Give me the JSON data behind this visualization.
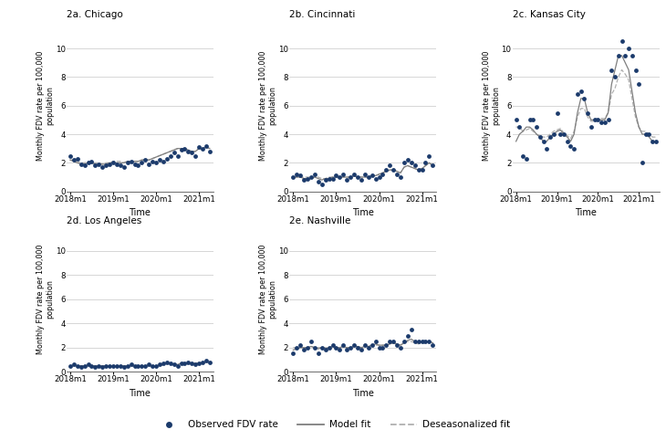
{
  "cities": [
    "2a. Chicago",
    "2b. Cincinnati",
    "2c. Kansas City",
    "2d. Los Angeles",
    "2e. Nashville"
  ],
  "dot_color": "#1b3a6b",
  "model_color": "#7f7f7f",
  "deseasonal_color": "#b0b0b0",
  "ylabel": "Monthly FDV rate per 100,000\npopulation",
  "xlabel": "Time",
  "xtick_labels": [
    "2018m1",
    "2019m1",
    "2020m1",
    "2021m1"
  ],
  "ylim": [
    0,
    12
  ],
  "yticks": [
    0,
    2,
    4,
    6,
    8,
    10
  ],
  "background_color": "#ffffff",
  "legend_dot_label": "Observed FDV rate",
  "legend_solid_label": "Model fit",
  "legend_dash_label": "Deseasonalized fit",
  "chicago_obs": [
    2.5,
    2.2,
    2.3,
    1.9,
    1.8,
    2.0,
    2.1,
    1.8,
    1.9,
    1.7,
    1.8,
    1.9,
    2.0,
    1.9,
    1.8,
    1.7,
    2.0,
    2.1,
    1.9,
    1.8,
    2.0,
    2.2,
    1.9,
    2.1,
    2.0,
    2.2,
    2.1,
    2.3,
    2.5,
    2.7,
    2.5,
    2.9,
    3.0,
    2.8,
    2.7,
    2.5,
    3.1,
    3.0,
    3.2,
    2.8
  ],
  "chicago_model": [
    2.2,
    2.1,
    2.0,
    1.9,
    1.9,
    2.0,
    2.0,
    1.9,
    1.9,
    1.9,
    1.9,
    2.0,
    2.0,
    2.0,
    2.0,
    2.0,
    2.1,
    2.1,
    2.1,
    2.1,
    2.2,
    2.2,
    2.2,
    2.3,
    2.4,
    2.5,
    2.6,
    2.7,
    2.8,
    2.9,
    3.0,
    3.0,
    3.0,
    2.9,
    2.8,
    2.8,
    3.0,
    3.0,
    3.1,
    3.0
  ],
  "chicago_deseas": [
    2.2,
    2.2,
    2.1,
    2.0,
    2.0,
    2.1,
    2.0,
    2.0,
    2.0,
    1.9,
    2.0,
    2.0,
    2.1,
    2.1,
    2.1,
    2.0,
    2.1,
    2.1,
    2.1,
    2.1,
    2.2,
    2.2,
    2.2,
    2.3,
    2.4,
    2.5,
    2.6,
    2.7,
    2.8,
    2.9,
    3.0,
    2.9,
    2.9,
    2.8,
    2.8,
    2.8,
    3.0,
    3.0,
    3.1,
    3.0
  ],
  "cincinnati_obs": [
    1.0,
    1.2,
    1.1,
    0.8,
    0.9,
    1.0,
    1.2,
    0.7,
    0.5,
    0.8,
    0.9,
    0.9,
    1.1,
    1.0,
    1.2,
    0.8,
    1.0,
    1.2,
    1.0,
    0.8,
    1.2,
    1.0,
    1.1,
    0.9,
    1.0,
    1.2,
    1.5,
    1.8,
    1.5,
    1.2,
    1.0,
    2.0,
    2.2,
    2.0,
    1.8,
    1.5,
    1.5,
    2.0,
    2.5,
    1.8
  ],
  "cincinnati_model": [
    1.0,
    1.0,
    1.0,
    0.9,
    0.9,
    0.9,
    1.0,
    0.9,
    0.8,
    0.9,
    0.9,
    1.0,
    1.0,
    1.0,
    1.0,
    1.0,
    1.0,
    1.1,
    1.0,
    1.0,
    1.0,
    1.0,
    1.1,
    1.1,
    1.2,
    1.3,
    1.4,
    1.5,
    1.5,
    1.4,
    1.3,
    1.7,
    1.8,
    1.7,
    1.6,
    1.5,
    1.6,
    1.8,
    2.0,
    1.8
  ],
  "cincinnati_deseas": [
    1.0,
    1.0,
    1.0,
    1.0,
    1.0,
    1.0,
    1.0,
    1.0,
    0.9,
    0.9,
    1.0,
    1.0,
    1.0,
    1.0,
    1.0,
    1.0,
    1.0,
    1.1,
    1.0,
    1.0,
    1.0,
    1.0,
    1.1,
    1.1,
    1.2,
    1.3,
    1.4,
    1.5,
    1.5,
    1.4,
    1.3,
    1.7,
    1.8,
    1.7,
    1.6,
    1.5,
    1.6,
    1.8,
    2.0,
    1.8
  ],
  "kc_obs": [
    5.0,
    4.5,
    2.5,
    2.3,
    5.0,
    5.0,
    4.5,
    3.8,
    3.5,
    3.0,
    3.8,
    4.0,
    5.5,
    4.0,
    4.0,
    3.5,
    3.2,
    3.0,
    6.8,
    7.0,
    6.5,
    5.5,
    4.5,
    5.0,
    5.0,
    4.8,
    4.8,
    5.0,
    8.5,
    8.0,
    9.5,
    10.5,
    9.5,
    10.0,
    9.5,
    8.5,
    7.5,
    2.0,
    4.0,
    4.0,
    3.5,
    3.5
  ],
  "kc_model": [
    3.5,
    4.0,
    4.2,
    4.5,
    4.5,
    4.3,
    4.0,
    3.8,
    3.5,
    3.5,
    3.8,
    4.0,
    4.2,
    4.3,
    4.0,
    3.8,
    3.5,
    4.0,
    5.5,
    6.5,
    6.5,
    5.5,
    5.0,
    5.0,
    5.0,
    5.0,
    5.0,
    5.5,
    7.5,
    8.5,
    9.5,
    9.5,
    9.0,
    8.5,
    7.0,
    5.5,
    4.5,
    4.0,
    4.0,
    3.8,
    3.5,
    3.5
  ],
  "kc_deseas": [
    4.5,
    4.5,
    4.2,
    4.3,
    4.4,
    4.2,
    4.0,
    3.9,
    3.8,
    3.8,
    4.0,
    4.2,
    4.3,
    4.4,
    4.1,
    3.9,
    3.7,
    4.2,
    5.2,
    5.8,
    5.8,
    5.2,
    4.9,
    4.9,
    5.0,
    5.1,
    5.1,
    5.5,
    6.8,
    7.2,
    8.0,
    8.5,
    8.2,
    7.8,
    6.5,
    5.2,
    4.5,
    4.2,
    4.2,
    4.0,
    3.8,
    3.8
  ],
  "la_obs": [
    0.5,
    0.6,
    0.5,
    0.4,
    0.5,
    0.6,
    0.5,
    0.4,
    0.5,
    0.4,
    0.5,
    0.5,
    0.5,
    0.5,
    0.5,
    0.4,
    0.5,
    0.6,
    0.5,
    0.5,
    0.5,
    0.5,
    0.6,
    0.5,
    0.5,
    0.6,
    0.7,
    0.8,
    0.7,
    0.6,
    0.5,
    0.7,
    0.7,
    0.8,
    0.7,
    0.6,
    0.7,
    0.8,
    0.9,
    0.8
  ],
  "la_model": [
    0.5,
    0.5,
    0.5,
    0.5,
    0.5,
    0.5,
    0.5,
    0.5,
    0.5,
    0.5,
    0.5,
    0.5,
    0.5,
    0.5,
    0.5,
    0.5,
    0.5,
    0.5,
    0.5,
    0.5,
    0.5,
    0.5,
    0.5,
    0.5,
    0.5,
    0.5,
    0.6,
    0.7,
    0.7,
    0.6,
    0.6,
    0.7,
    0.7,
    0.7,
    0.7,
    0.7,
    0.7,
    0.8,
    0.8,
    0.8
  ],
  "la_deseas": [
    0.5,
    0.5,
    0.5,
    0.5,
    0.5,
    0.5,
    0.5,
    0.5,
    0.5,
    0.5,
    0.5,
    0.5,
    0.5,
    0.5,
    0.5,
    0.5,
    0.5,
    0.5,
    0.5,
    0.5,
    0.5,
    0.5,
    0.5,
    0.5,
    0.5,
    0.5,
    0.6,
    0.7,
    0.7,
    0.6,
    0.6,
    0.7,
    0.7,
    0.7,
    0.7,
    0.7,
    0.7,
    0.8,
    0.8,
    0.8
  ],
  "nash_obs": [
    1.5,
    2.0,
    2.2,
    1.8,
    2.0,
    2.5,
    2.0,
    1.5,
    2.0,
    1.8,
    2.0,
    2.2,
    2.0,
    1.8,
    2.2,
    1.8,
    2.0,
    2.2,
    2.0,
    1.8,
    2.2,
    2.0,
    2.2,
    2.5,
    2.0,
    2.0,
    2.2,
    2.5,
    2.5,
    2.2,
    2.0,
    2.5,
    3.0,
    3.5,
    2.5,
    2.5,
    2.5,
    2.5,
    2.5,
    2.2
  ],
  "nash_model": [
    1.8,
    1.9,
    2.0,
    2.0,
    2.0,
    2.1,
    2.0,
    1.9,
    2.0,
    1.9,
    2.0,
    2.1,
    2.0,
    2.0,
    2.1,
    2.0,
    2.0,
    2.1,
    2.1,
    2.0,
    2.1,
    2.1,
    2.2,
    2.3,
    2.2,
    2.2,
    2.2,
    2.3,
    2.4,
    2.3,
    2.2,
    2.4,
    2.6,
    2.7,
    2.5,
    2.4,
    2.4,
    2.5,
    2.5,
    2.4
  ],
  "nash_deseas": [
    2.0,
    2.0,
    2.0,
    2.0,
    2.0,
    2.1,
    2.0,
    2.0,
    2.0,
    2.0,
    2.0,
    2.1,
    2.0,
    2.0,
    2.1,
    2.0,
    2.0,
    2.1,
    2.1,
    2.0,
    2.1,
    2.1,
    2.2,
    2.2,
    2.2,
    2.2,
    2.2,
    2.3,
    2.4,
    2.3,
    2.2,
    2.4,
    2.5,
    2.5,
    2.4,
    2.3,
    2.4,
    2.4,
    2.5,
    2.4
  ]
}
